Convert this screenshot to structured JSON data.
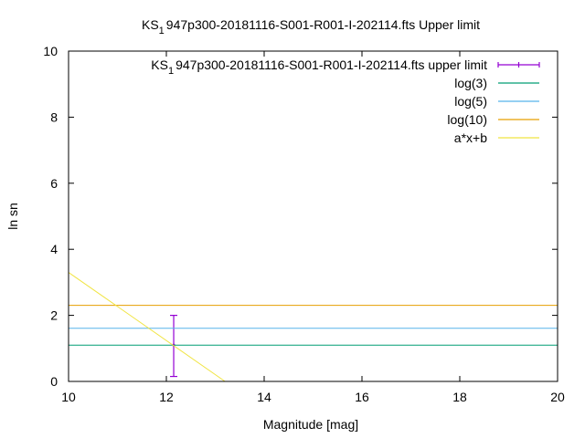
{
  "chart_data": {
    "type": "line",
    "title": {
      "prefix": "KS",
      "subscript": "1",
      "suffix": "947p300-20181116-S001-R001-I-202114.fts Upper limit"
    },
    "xlabel": "Magnitude [mag]",
    "ylabel": "ln sn",
    "xlim": [
      10,
      20
    ],
    "ylim": [
      0,
      10
    ],
    "x_ticks": [
      "10",
      "12",
      "14",
      "16",
      "18",
      "20"
    ],
    "y_ticks": [
      "0",
      "2",
      "4",
      "6",
      "8",
      "10"
    ],
    "grid": false,
    "legend_position": "top-right",
    "series": [
      {
        "name_prefix": "KS",
        "name_subscript": "1",
        "name_suffix": "947p300-20181116-S001-R001-I-202114.fts upper limit",
        "kind": "errorbar",
        "color": "#9400d3",
        "points": [
          {
            "x": 12.15,
            "y": 1.1,
            "ylow": 0.15,
            "yhigh": 2.0
          }
        ]
      },
      {
        "name": "log(3)",
        "kind": "hline",
        "color": "#009e73",
        "y": 1.0986
      },
      {
        "name": "log(5)",
        "kind": "hline",
        "color": "#56b4e9",
        "y": 1.6094
      },
      {
        "name": "log(10)",
        "kind": "hline",
        "color": "#e69f00",
        "y": 2.3026
      },
      {
        "name": "a*x+b",
        "kind": "line",
        "color": "#f0e442",
        "points": [
          {
            "x": 10.0,
            "y": 3.3
          },
          {
            "x": 13.2,
            "y": 0.0
          }
        ]
      }
    ]
  }
}
